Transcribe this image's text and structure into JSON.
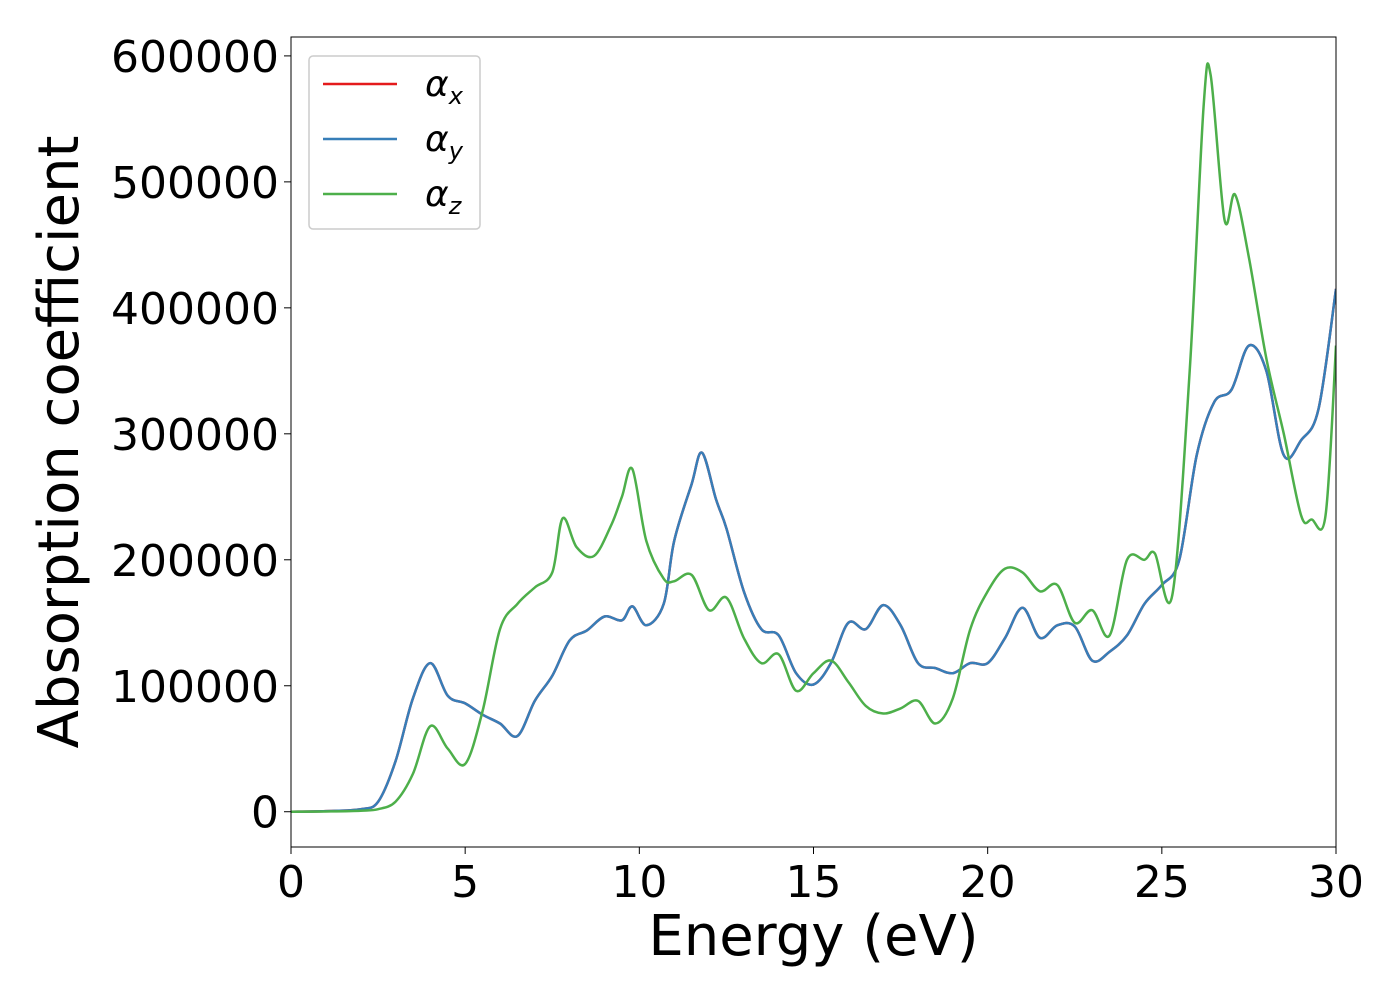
{
  "chart_data": {
    "type": "line",
    "xlabel": "Energy (eV)",
    "ylabel": "Absorption coefficient",
    "xlim": [
      0,
      30
    ],
    "ylim": [
      -28000,
      615000
    ],
    "x_ticks": [
      0,
      5,
      10,
      15,
      20,
      25,
      30
    ],
    "x_tick_labels": [
      "0",
      "5",
      "10",
      "15",
      "20",
      "25",
      "30"
    ],
    "y_ticks": [
      0,
      100000,
      200000,
      300000,
      400000,
      500000,
      600000
    ],
    "y_tick_labels": [
      "0",
      "100000",
      "200000",
      "300000",
      "400000",
      "500000",
      "600000"
    ],
    "grid": false,
    "legend_position": "top-left",
    "series": [
      {
        "name": "α",
        "subscript": "x",
        "color": "#e41a1c",
        "x": [
          0,
          1,
          2,
          2.5,
          3,
          3.5,
          4,
          4.5,
          5,
          5.5,
          6,
          6.5,
          7,
          7.5,
          8,
          8.5,
          9,
          9.5,
          9.8,
          10.2,
          10.7,
          11,
          11.5,
          11.8,
          12.2,
          12.5,
          13,
          13.5,
          14,
          14.5,
          15,
          15.5,
          16,
          16.5,
          17,
          17.5,
          18,
          18.5,
          19,
          19.5,
          20,
          20.5,
          21,
          21.5,
          22,
          22.5,
          23,
          23.5,
          24,
          24.5,
          25,
          25.5,
          26,
          26.5,
          27,
          27.5,
          28,
          28.5,
          29,
          29.5,
          30
        ],
        "y": [
          0,
          500,
          2000,
          8000,
          40000,
          90000,
          118000,
          92000,
          86000,
          77000,
          70000,
          60000,
          88000,
          108000,
          136000,
          144000,
          155000,
          152000,
          163000,
          148000,
          165000,
          215000,
          260000,
          285000,
          248000,
          225000,
          175000,
          145000,
          140000,
          110000,
          101000,
          118000,
          150000,
          145000,
          164000,
          148000,
          118000,
          114000,
          110000,
          118000,
          118000,
          138000,
          162000,
          138000,
          148000,
          147000,
          120000,
          127000,
          140000,
          165000,
          180000,
          200000,
          283000,
          325000,
          335000,
          370000,
          350000,
          283000,
          295000,
          320000,
          415000
        ]
      },
      {
        "name": "α",
        "subscript": "y",
        "color": "#377eb8",
        "x": [
          0,
          1,
          2,
          2.5,
          3,
          3.5,
          4,
          4.5,
          5,
          5.5,
          6,
          6.5,
          7,
          7.5,
          8,
          8.5,
          9,
          9.5,
          9.8,
          10.2,
          10.7,
          11,
          11.5,
          11.8,
          12.2,
          12.5,
          13,
          13.5,
          14,
          14.5,
          15,
          15.5,
          16,
          16.5,
          17,
          17.5,
          18,
          18.5,
          19,
          19.5,
          20,
          20.5,
          21,
          21.5,
          22,
          22.5,
          23,
          23.5,
          24,
          24.5,
          25,
          25.5,
          26,
          26.5,
          27,
          27.5,
          28,
          28.5,
          29,
          29.5,
          30
        ],
        "y": [
          0,
          500,
          2000,
          8000,
          40000,
          90000,
          118000,
          92000,
          86000,
          77000,
          70000,
          60000,
          88000,
          108000,
          136000,
          144000,
          155000,
          152000,
          163000,
          148000,
          165000,
          215000,
          260000,
          285000,
          248000,
          225000,
          175000,
          145000,
          140000,
          110000,
          101000,
          118000,
          150000,
          145000,
          164000,
          148000,
          118000,
          114000,
          110000,
          118000,
          118000,
          138000,
          162000,
          138000,
          148000,
          147000,
          120000,
          127000,
          140000,
          165000,
          180000,
          200000,
          283000,
          325000,
          335000,
          370000,
          350000,
          283000,
          295000,
          320000,
          415000
        ]
      },
      {
        "name": "α",
        "subscript": "z",
        "color": "#4daf4a",
        "x": [
          0,
          1,
          2,
          2.5,
          3,
          3.5,
          4,
          4.5,
          5,
          5.5,
          6,
          6.5,
          7,
          7.5,
          7.8,
          8.2,
          8.7,
          9.2,
          9.5,
          9.8,
          10.2,
          10.7,
          11,
          11.5,
          12,
          12.5,
          13,
          13.5,
          14,
          14.5,
          15,
          15.5,
          16,
          16.5,
          17,
          17.5,
          18,
          18.5,
          19,
          19.5,
          20,
          20.5,
          21,
          21.5,
          22,
          22.5,
          23,
          23.5,
          24,
          24.5,
          24.8,
          25.3,
          25.8,
          26.2,
          26.4,
          26.8,
          27.1,
          27.5,
          28,
          28.5,
          29,
          29.3,
          29.7,
          30
        ],
        "y": [
          0,
          200,
          800,
          2000,
          8000,
          30000,
          68000,
          50000,
          38000,
          80000,
          145000,
          165000,
          178000,
          190000,
          233000,
          210000,
          203000,
          228000,
          250000,
          272000,
          215000,
          185000,
          183000,
          188000,
          160000,
          170000,
          138000,
          118000,
          125000,
          96000,
          110000,
          120000,
          103000,
          84000,
          78000,
          82000,
          88000,
          70000,
          90000,
          145000,
          175000,
          193000,
          190000,
          175000,
          180000,
          150000,
          160000,
          140000,
          200000,
          200000,
          205000,
          172000,
          350000,
          560000,
          585000,
          470000,
          490000,
          440000,
          360000,
          300000,
          235000,
          232000,
          235000,
          370000
        ]
      }
    ]
  }
}
